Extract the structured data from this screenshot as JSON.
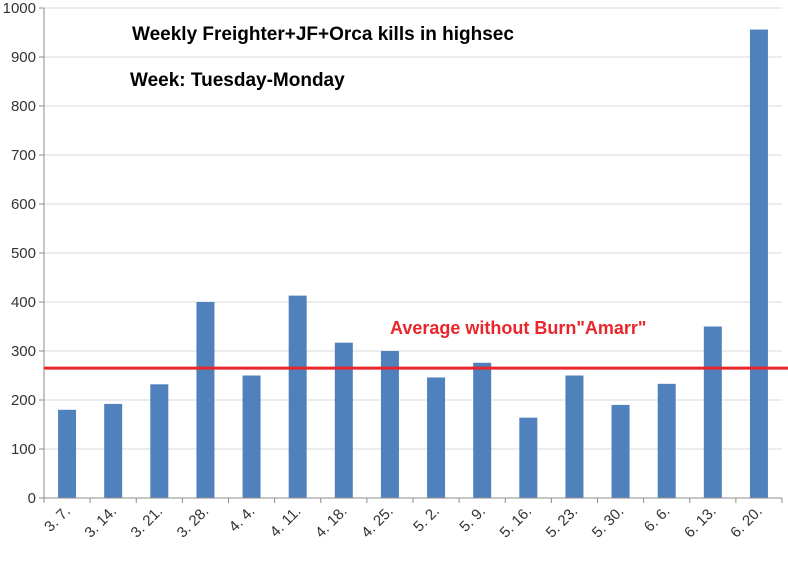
{
  "chart_data": {
    "type": "bar",
    "title": "Weekly Freighter+JF+Orca kills in highsec",
    "subtitle": "Week: Tuesday-Monday",
    "categories": [
      "3. 7.",
      "3. 14.",
      "3. 21.",
      "3. 28.",
      "4. 4.",
      "4. 11.",
      "4. 18.",
      "4. 25.",
      "5. 2.",
      "5. 9.",
      "5. 16.",
      "5. 23.",
      "5. 30.",
      "6. 6.",
      "6. 13.",
      "6. 20."
    ],
    "values": [
      180,
      192,
      232,
      400,
      250,
      413,
      317,
      300,
      246,
      276,
      164,
      250,
      190,
      233,
      350,
      956
    ],
    "ylim": [
      0,
      1000
    ],
    "yticks": [
      0,
      100,
      200,
      300,
      400,
      500,
      600,
      700,
      800,
      900,
      1000
    ],
    "grid": true,
    "bar_color": "#4f81bd",
    "reference_line": {
      "label": "Average without Burn\"Amarr\"",
      "value": 265,
      "color": "#e8262b"
    },
    "xlabel": "",
    "ylabel": ""
  }
}
